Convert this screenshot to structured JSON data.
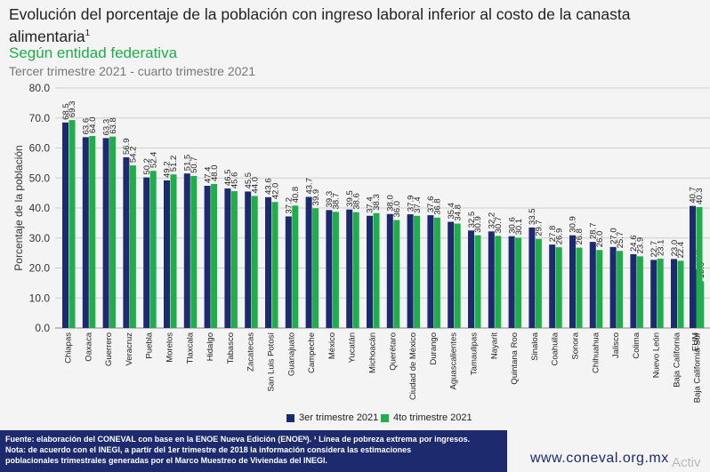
{
  "header": {
    "title": "Evolución del porcentaje de la población con ingreso laboral inferior al costo de la canasta alimentaria",
    "title_sup": "1",
    "subtitle": "Según entidad federativa",
    "period": "Tercer trimestre 2021 - cuarto trimestre 2021"
  },
  "legend": {
    "s1": "3er trimestre 2021",
    "s2": "4to trimestre 2021"
  },
  "footer": {
    "line1": "Fuente: elaboración del CONEVAL con base en la ENOE Nueva Edición (ENOEᴺ). ¹ Línea de pobreza extrema por ingresos.",
    "line2": "Nota: de acuerdo con el INEGI, a partir del 1er trimestre de 2018 la información considera las estimaciones",
    "line3": "poblacionales trimestrales generadas por el Marco Muestreo de Viviendas del INEGI.",
    "url": "www.coneval.org.mx",
    "overlay": "Activ"
  },
  "colors": {
    "series1": "#1d2a6e",
    "series2": "#1fae4b",
    "grid": "#cfcfcf"
  },
  "chart_data": {
    "type": "bar",
    "ylabel": "Porcentaje de la población",
    "ylim": [
      0,
      80
    ],
    "yticks": [
      "0.0",
      "10.0",
      "20.0",
      "30.0",
      "40.0",
      "50.0",
      "60.0",
      "70.0",
      "80.0"
    ],
    "grid": true,
    "legend_position": "bottom",
    "categories": [
      "Chiapas",
      "Oaxaca",
      "Guerrero",
      "Veracruz",
      "Puebla",
      "Morelos",
      "Tlaxcala",
      "Hidalgo",
      "Tabasco",
      "Zacatecas",
      "San Luis Potosí",
      "Guanajuato",
      "Campeche",
      "México",
      "Yucatán",
      "Michoacán",
      "Querétaro",
      "Ciudad de México",
      "Durango",
      "Aguascalientes",
      "Tamaulipas",
      "Nayarit",
      "Quintana Roo",
      "Sinaloa",
      "Coahuila",
      "Sonora",
      "Chihuahua",
      "Jalisco",
      "Colima",
      "Nuevo León",
      "Baja California",
      "Baja California Sur",
      "EUM"
    ],
    "series": [
      {
        "name": "3er trimestre 2021",
        "values": [
          68.5,
          63.6,
          63.3,
          56.9,
          50.2,
          49.2,
          51.5,
          47.4,
          46.5,
          45.5,
          43.6,
          37.2,
          43.7,
          39.3,
          39.5,
          37.4,
          38.0,
          37.9,
          37.6,
          35.4,
          32.5,
          32.2,
          30.6,
          33.5,
          27.8,
          30.9,
          28.7,
          27.0,
          24.6,
          22.7,
          23.0,
          19.6,
          40.7
        ]
      },
      {
        "name": "4to trimestre 2021",
        "values": [
          69.3,
          64.0,
          63.8,
          54.2,
          52.4,
          51.2,
          50.7,
          48.0,
          45.6,
          44.0,
          42.0,
          40.8,
          39.9,
          38.7,
          38.6,
          38.3,
          36.0,
          37.4,
          36.8,
          34.8,
          30.9,
          30.7,
          30.1,
          29.7,
          26.9,
          26.8,
          26.0,
          25.7,
          23.9,
          23.1,
          22.4,
          15.6,
          40.3
        ]
      }
    ]
  }
}
